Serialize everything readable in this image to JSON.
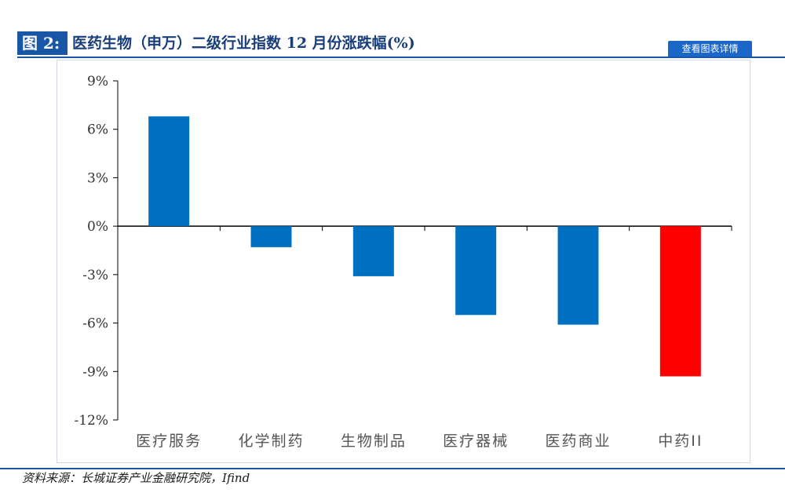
{
  "header": {
    "figure_label": "图 2:",
    "title": "医药生物（申万）二级行业指数 12 月份涨跌幅(%)",
    "detail_button": "查看图表详情"
  },
  "source": "资料来源：长城证券产业金融研究院，Ifind",
  "chart_data": {
    "type": "bar",
    "categories": [
      "医疗服务",
      "化学制药",
      "生物制品",
      "医疗器械",
      "医药商业",
      "中药II"
    ],
    "values": [
      6.8,
      -1.3,
      -3.1,
      -5.5,
      -6.1,
      -9.3
    ],
    "colors": [
      "#0070c0",
      "#0070c0",
      "#0070c0",
      "#0070c0",
      "#0070c0",
      "#ff0000"
    ],
    "ylim": [
      -12,
      9
    ],
    "yticks": [
      9,
      6,
      3,
      0,
      -3,
      -6,
      -9,
      -12
    ],
    "ytick_labels": [
      "9%",
      "6%",
      "3%",
      "0%",
      "-3%",
      "-6%",
      "-9%",
      "-12%"
    ],
    "grid": false,
    "xlabel": "",
    "ylabel": ""
  }
}
